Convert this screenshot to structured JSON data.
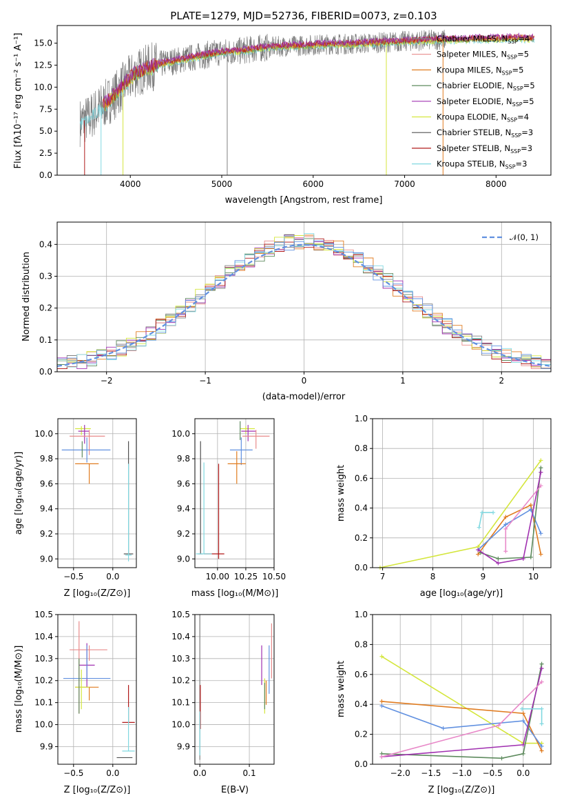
{
  "colors": {
    "chabrier_miles": "#808080",
    "salpeter_miles": "#e88a8a",
    "kroupa_miles": "#e07b1f",
    "chabrier_elodie": "#5d8a5d",
    "salpeter_elodie": "#a030b0",
    "kroupa_elodie": "#d4e63c",
    "chabrier_stelib": "#505050",
    "salpeter_stelib": "#b01818",
    "kroupa_stelib": "#80d8e0",
    "normal_curve": "#6090e0",
    "pink": "#e888c8"
  },
  "chart_data": [
    {
      "type": "line",
      "title": "PLATE=1279, MJD=52736, FIBERID=0073, z=0.103",
      "xlabel": "wavelength [Angstrom, rest frame]",
      "ylabel": "Flux [fλ10⁻¹⁷ erg cm⁻² s⁻¹ A⁻¹]",
      "xlim": [
        3200,
        8600
      ],
      "ylim": [
        0,
        17
      ],
      "xticks": [
        "4000",
        "5000",
        "6000",
        "7000",
        "8000"
      ],
      "yticks": [
        "0.0",
        "2.5",
        "5.0",
        "7.5",
        "10.0",
        "12.5",
        "15.0"
      ],
      "legend_position": "right",
      "series": [
        {
          "name": "Chabrier MILES, N",
          "sub": "SSP",
          "suffix": "=4",
          "color_key": "chabrier_miles"
        },
        {
          "name": "Salpeter MILES, N",
          "sub": "SSP",
          "suffix": "=5",
          "color_key": "salpeter_miles"
        },
        {
          "name": "Kroupa MILES, N",
          "sub": "SSP",
          "suffix": "=5",
          "color_key": "kroupa_miles"
        },
        {
          "name": "Chabrier ELODIE, N",
          "sub": "SSP",
          "suffix": "=5",
          "color_key": "chabrier_elodie"
        },
        {
          "name": "Salpeter ELODIE, N",
          "sub": "SSP",
          "suffix": "=5",
          "color_key": "salpeter_elodie"
        },
        {
          "name": "Kroupa ELODIE, N",
          "sub": "SSP",
          "suffix": "=4",
          "color_key": "kroupa_elodie"
        },
        {
          "name": "Chabrier STELIB, N",
          "sub": "SSP",
          "suffix": "=3",
          "color_key": "chabrier_stelib"
        },
        {
          "name": "Salpeter STELIB, N",
          "sub": "SSP",
          "suffix": "=3",
          "color_key": "salpeter_stelib"
        },
        {
          "name": "Kroupa STELIB, N",
          "sub": "SSP",
          "suffix": "=3",
          "color_key": "kroupa_stelib"
        }
      ],
      "continuum": [
        [
          3450,
          6.0
        ],
        [
          3550,
          6.5
        ],
        [
          3650,
          7.5
        ],
        [
          3750,
          8.3
        ],
        [
          3850,
          9.3
        ],
        [
          3950,
          10.5
        ],
        [
          4050,
          11.5
        ],
        [
          4200,
          12.2
        ],
        [
          4400,
          12.8
        ],
        [
          4600,
          13.2
        ],
        [
          4800,
          13.6
        ],
        [
          5000,
          14.0
        ],
        [
          5200,
          14.1
        ],
        [
          5400,
          14.4
        ],
        [
          5600,
          14.6
        ],
        [
          5800,
          14.7
        ],
        [
          6000,
          14.8
        ],
        [
          6200,
          14.9
        ],
        [
          6400,
          14.9
        ],
        [
          6600,
          15.0
        ],
        [
          6800,
          15.1
        ],
        [
          7000,
          15.2
        ],
        [
          7200,
          15.3
        ],
        [
          7400,
          15.4
        ],
        [
          7600,
          15.4
        ],
        [
          7800,
          15.5
        ],
        [
          8000,
          15.5
        ],
        [
          8200,
          15.6
        ],
        [
          8400,
          15.5
        ]
      ],
      "dropouts": [
        [
          3500,
          0.0
        ],
        [
          3680,
          0.0
        ],
        [
          3920,
          0.0
        ],
        [
          5060,
          0.0
        ],
        [
          6800,
          0.0
        ],
        [
          7420,
          0.0
        ]
      ]
    },
    {
      "type": "line",
      "xlabel": "(data-model)/error",
      "ylabel": "Normed distribution",
      "xlim": [
        -2.5,
        2.5
      ],
      "ylim": [
        0,
        0.47
      ],
      "xticks": [
        "−2",
        "−1",
        "0",
        "1",
        "2"
      ],
      "yticks": [
        "0.0",
        "0.1",
        "0.2",
        "0.3",
        "0.4"
      ],
      "legend": "𝒩(0, 1)",
      "legend_position": "top-right"
    },
    {
      "type": "scatter",
      "xlabel": "Z [log₁₀(Z/Z⊙)]",
      "ylabel": "age  [log₁₀(age/yr)]",
      "xlim": [
        -0.7,
        0.3
      ],
      "ylim": [
        8.93,
        10.12
      ],
      "xticks": [
        "−0.5",
        "0.0"
      ],
      "yticks": [
        "9.0",
        "9.2",
        "9.4",
        "9.6",
        "9.8",
        "10.0"
      ]
    },
    {
      "type": "scatter",
      "xlabel": "mass [log₁₀(M/M⊙)]",
      "xlim": [
        9.8,
        10.5
      ],
      "ylim": [
        8.93,
        10.12
      ],
      "xticks": [
        "10.00",
        "10.25",
        "10.50"
      ],
      "yticks": [
        "9.0",
        "9.2",
        "9.4",
        "9.6",
        "9.8",
        "10.0"
      ]
    },
    {
      "type": "line",
      "xlabel": "age  [log₁₀(age/yr)]",
      "ylabel": "mass weight",
      "xlim": [
        6.8,
        10.35
      ],
      "ylim": [
        0,
        1
      ],
      "xticks": [
        "7",
        "8",
        "9",
        "10"
      ],
      "yticks": [
        "0.0",
        "0.2",
        "0.4",
        "0.6",
        "0.8",
        "1.0"
      ]
    },
    {
      "type": "scatter",
      "xlabel": "Z [log₁₀(Z/Z⊙)]",
      "ylabel": "mass [log₁₀(M/M⊙)]",
      "xlim": [
        -0.7,
        0.3
      ],
      "ylim": [
        9.82,
        10.5
      ],
      "xticks": [
        "−0.5",
        "0.0"
      ],
      "yticks": [
        "9.9",
        "10.0",
        "10.1",
        "10.2",
        "10.3",
        "10.4",
        "10.5"
      ]
    },
    {
      "type": "scatter",
      "xlabel": "E(B-V)",
      "xlim": [
        -0.01,
        0.15
      ],
      "ylim": [
        9.82,
        10.5
      ],
      "xticks": [
        "0.0",
        "0.1"
      ],
      "yticks": [
        "9.9",
        "10.0",
        "10.1",
        "10.2",
        "10.3",
        "10.4",
        "10.5"
      ]
    },
    {
      "type": "line",
      "xlabel": "Z [log₁₀(Z/Z⊙)]",
      "ylabel": "mass weight",
      "xlim": [
        -2.45,
        0.45
      ],
      "ylim": [
        0,
        1
      ],
      "xticks": [
        "−2.0",
        "−1.5",
        "−1.0",
        "−0.5",
        "0.0"
      ],
      "yticks": [
        "0.0",
        "0.2",
        "0.4",
        "0.6",
        "0.8",
        "1.0"
      ]
    }
  ]
}
